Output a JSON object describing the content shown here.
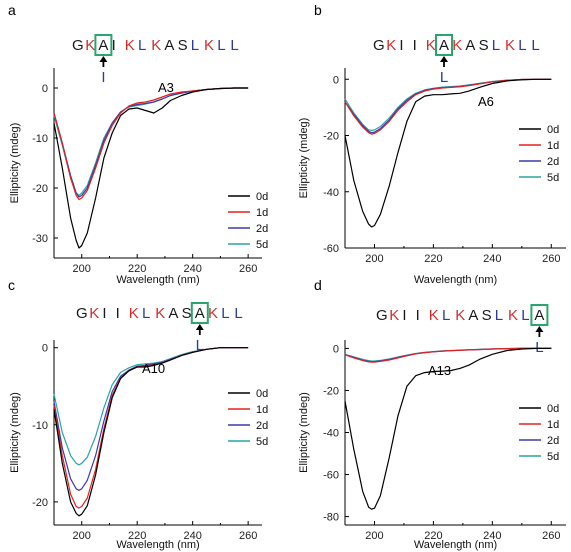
{
  "colors": {
    "K": "#d42c2c",
    "L": "#2e3a9f",
    "other": "#1a1a1a",
    "box": "#2aa56b",
    "series": [
      "#000000",
      "#e32020",
      "#3b3ba8",
      "#2aa3a8"
    ]
  },
  "chart_data": [
    {
      "type": "line",
      "panel": "a",
      "sequence": [
        "G",
        "K",
        "A",
        "I",
        "K",
        "L",
        "K",
        "A",
        "S",
        "L",
        "K",
        "L",
        "L"
      ],
      "boxed_index": 2,
      "mutation": "I",
      "annotation": "A3",
      "xlabel": "Wavelength (nm)",
      "ylabel": "Ellipticity (mdeg)",
      "xlim": [
        190,
        265
      ],
      "ylim": [
        -34,
        4
      ],
      "xticks": [
        200,
        220,
        240,
        260
      ],
      "yticks": [
        0,
        -10,
        -20,
        -30
      ],
      "x": [
        190,
        193,
        196,
        198,
        199,
        200,
        202,
        205,
        208,
        211,
        214,
        217,
        220,
        223,
        226,
        229,
        232,
        236,
        240,
        245,
        250,
        255,
        260
      ],
      "series": [
        {
          "name": "0d",
          "values": [
            -7,
            -16,
            -26,
            -30.5,
            -32,
            -31.5,
            -29,
            -22,
            -14,
            -9,
            -5.5,
            -4.2,
            -4,
            -4.5,
            -5,
            -4,
            -2.5,
            -1.5,
            -0.8,
            -0.3,
            -0.1,
            0,
            0
          ]
        },
        {
          "name": "1d",
          "values": [
            -5,
            -11,
            -18,
            -21.5,
            -22.3,
            -22,
            -20.5,
            -16,
            -11,
            -7.5,
            -5,
            -3.6,
            -3,
            -2.8,
            -2.4,
            -1.8,
            -1.2,
            -0.8,
            -0.6,
            -0.3,
            -0.1,
            0,
            0
          ]
        },
        {
          "name": "2d",
          "values": [
            -5,
            -11,
            -17.5,
            -21,
            -21.8,
            -21.5,
            -20,
            -15.5,
            -10.5,
            -7,
            -4.8,
            -3.7,
            -3.3,
            -3.1,
            -2.8,
            -2.2,
            -1.5,
            -1,
            -0.6,
            -0.3,
            -0.1,
            0,
            0
          ]
        },
        {
          "name": "5d",
          "values": [
            -5.5,
            -11.5,
            -18,
            -21,
            -21.5,
            -21,
            -19.5,
            -15,
            -10,
            -7,
            -4.8,
            -3.8,
            -3.5,
            -3.2,
            -2.8,
            -2.2,
            -1.5,
            -1,
            -0.6,
            -0.3,
            -0.1,
            0,
            0
          ]
        }
      ]
    },
    {
      "type": "line",
      "panel": "b",
      "sequence": [
        "G",
        "K",
        "I",
        "I",
        "K",
        "A",
        "K",
        "A",
        "S",
        "L",
        "K",
        "L",
        "L"
      ],
      "boxed_index": 5,
      "mutation": "L",
      "annotation": "A6",
      "xlabel": "Wavelength (nm)",
      "ylabel": "Ellipticity (mdeg)",
      "xlim": [
        190,
        265
      ],
      "ylim": [
        -60,
        4
      ],
      "xticks": [
        200,
        220,
        240,
        260
      ],
      "yticks": [
        0,
        -20,
        -40,
        -60
      ],
      "x": [
        190,
        193,
        196,
        198,
        199,
        200,
        202,
        205,
        208,
        211,
        214,
        217,
        220,
        223,
        226,
        229,
        232,
        236,
        240,
        245,
        250,
        255,
        260
      ],
      "series": [
        {
          "name": "0d",
          "values": [
            -20,
            -36,
            -47,
            -51.5,
            -52.5,
            -52,
            -48,
            -38,
            -26,
            -15,
            -8,
            -6,
            -5.5,
            -5.5,
            -5.2,
            -5,
            -4.2,
            -2.8,
            -1.5,
            -0.6,
            -0.2,
            0,
            0
          ]
        },
        {
          "name": "1d",
          "values": [
            -8,
            -13,
            -17,
            -19,
            -19.5,
            -19.3,
            -18,
            -15,
            -11,
            -8,
            -5.5,
            -4.2,
            -3.5,
            -3.1,
            -2.9,
            -2.7,
            -2.3,
            -1.6,
            -0.9,
            -0.4,
            -0.1,
            0,
            0
          ]
        },
        {
          "name": "2d",
          "values": [
            -8,
            -12.5,
            -16.5,
            -18.5,
            -19,
            -18.8,
            -17.5,
            -14.5,
            -10.5,
            -7.5,
            -5.2,
            -4,
            -3.3,
            -3,
            -2.8,
            -2.6,
            -2.2,
            -1.5,
            -0.9,
            -0.4,
            -0.1,
            0,
            0
          ]
        },
        {
          "name": "5d",
          "values": [
            -7,
            -12,
            -16,
            -18,
            -18.2,
            -18,
            -16.8,
            -13.8,
            -10,
            -7,
            -5,
            -3.8,
            -3.2,
            -2.8,
            -2.6,
            -2.4,
            -2,
            -1.4,
            -0.8,
            -0.3,
            -0.1,
            0,
            0
          ]
        }
      ]
    },
    {
      "type": "line",
      "panel": "c",
      "sequence": [
        "G",
        "K",
        "I",
        "I",
        "K",
        "L",
        "K",
        "A",
        "S",
        "A",
        "K",
        "L",
        "L"
      ],
      "boxed_index": 9,
      "mutation": "L",
      "annotation": "A10",
      "xlabel": "Wavelength (nm)",
      "ylabel": "Ellipticity (mdeg)",
      "xlim": [
        190,
        265
      ],
      "ylim": [
        -23,
        1
      ],
      "xticks": [
        200,
        220,
        240,
        260
      ],
      "yticks": [
        0,
        -10,
        -20
      ],
      "x": [
        190,
        193,
        196,
        198,
        199,
        200,
        202,
        205,
        208,
        211,
        214,
        217,
        220,
        223,
        226,
        229,
        232,
        236,
        240,
        245,
        250,
        255,
        260
      ],
      "series": [
        {
          "name": "0d",
          "values": [
            -8,
            -15,
            -20,
            -21.5,
            -21.8,
            -21.6,
            -20.5,
            -16.5,
            -11,
            -6.5,
            -4,
            -3,
            -2.5,
            -2.5,
            -2.3,
            -2,
            -1.6,
            -1,
            -0.6,
            -0.2,
            0,
            0,
            0
          ]
        },
        {
          "name": "1d",
          "values": [
            -7.5,
            -14,
            -19,
            -20.6,
            -20.8,
            -20.6,
            -19.5,
            -15.8,
            -10.5,
            -6.2,
            -3.9,
            -3,
            -2.5,
            -2.4,
            -2.2,
            -2,
            -1.6,
            -1,
            -0.6,
            -0.2,
            0,
            0,
            0
          ]
        },
        {
          "name": "2d",
          "values": [
            -7,
            -13,
            -17,
            -18.3,
            -18.5,
            -18.3,
            -17.2,
            -14,
            -9.5,
            -5.7,
            -3.7,
            -2.9,
            -2.4,
            -2.3,
            -2.1,
            -1.9,
            -1.5,
            -1,
            -0.6,
            -0.2,
            0,
            0,
            0
          ]
        },
        {
          "name": "5d",
          "values": [
            -6,
            -11,
            -14,
            -15,
            -15.2,
            -15,
            -14.2,
            -11.5,
            -7.8,
            -4.8,
            -3.2,
            -2.6,
            -2.2,
            -2.1,
            -2,
            -1.8,
            -1.4,
            -0.9,
            -0.5,
            -0.2,
            0,
            0,
            0
          ]
        }
      ]
    },
    {
      "type": "line",
      "panel": "d",
      "sequence": [
        "G",
        "K",
        "I",
        "I",
        "K",
        "L",
        "K",
        "A",
        "S",
        "L",
        "K",
        "L",
        "A"
      ],
      "boxed_index": 12,
      "mutation": "L",
      "annotation": "A13",
      "xlabel": "Wavelength (nm)",
      "ylabel": "Ellipticity (mdeg)",
      "xlim": [
        190,
        265
      ],
      "ylim": [
        -84,
        4
      ],
      "xticks": [
        200,
        220,
        240,
        260
      ],
      "yticks": [
        0,
        -20,
        -40,
        -60,
        -80
      ],
      "x": [
        190,
        193,
        196,
        198,
        199,
        200,
        202,
        205,
        208,
        211,
        214,
        217,
        220,
        223,
        226,
        229,
        232,
        236,
        240,
        245,
        250,
        255,
        260
      ],
      "series": [
        {
          "name": "0d",
          "values": [
            -25,
            -48,
            -68,
            -75.5,
            -76.5,
            -76,
            -70,
            -52,
            -32,
            -18,
            -13,
            -11.5,
            -11,
            -10.8,
            -10.5,
            -9.5,
            -8,
            -5,
            -2.8,
            -1,
            -0.3,
            0,
            0
          ]
        },
        {
          "name": "1d",
          "values": [
            -3,
            -4.5,
            -5.8,
            -6.4,
            -6.5,
            -6.5,
            -6.2,
            -5.5,
            -4.5,
            -3.5,
            -2.6,
            -2,
            -1.6,
            -1.3,
            -1.1,
            -0.9,
            -0.7,
            -0.5,
            -0.3,
            -0.1,
            0,
            0,
            0
          ]
        },
        {
          "name": "2d",
          "values": [
            -3,
            -4.3,
            -5.6,
            -6.2,
            -6.3,
            -6.3,
            -6,
            -5.3,
            -4.3,
            -3.4,
            -2.5,
            -2,
            -1.6,
            -1.3,
            -1.1,
            -0.9,
            -0.7,
            -0.5,
            -0.3,
            -0.1,
            0,
            0,
            0
          ]
        },
        {
          "name": "5d",
          "values": [
            -2.8,
            -4,
            -5.2,
            -5.8,
            -6,
            -6,
            -5.7,
            -5,
            -4.1,
            -3.2,
            -2.4,
            -1.9,
            -1.5,
            -1.2,
            -1,
            -0.8,
            -0.6,
            -0.4,
            -0.2,
            -0.1,
            0,
            0,
            0
          ]
        }
      ]
    }
  ]
}
